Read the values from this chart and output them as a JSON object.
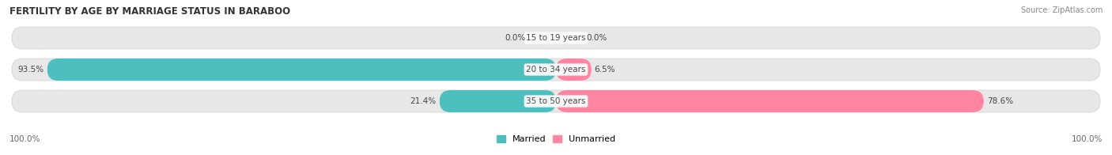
{
  "title": "FERTILITY BY AGE BY MARRIAGE STATUS IN BARABOO",
  "source": "Source: ZipAtlas.com",
  "categories": [
    "15 to 19 years",
    "20 to 34 years",
    "35 to 50 years"
  ],
  "married_pct": [
    0.0,
    93.5,
    21.4
  ],
  "unmarried_pct": [
    0.0,
    6.5,
    78.6
  ],
  "married_color": "#4DBFBF",
  "unmarried_color": "#FF85A1",
  "bar_bg_color": "#E8E8E8",
  "bar_bg_edge_color": "#D0D0D0",
  "title_fontsize": 8.5,
  "source_fontsize": 7,
  "label_fontsize": 7.5,
  "cat_fontsize": 7.5,
  "legend_fontsize": 8,
  "scale": 100.0,
  "left_label": "100.0%",
  "right_label": "100.0%"
}
